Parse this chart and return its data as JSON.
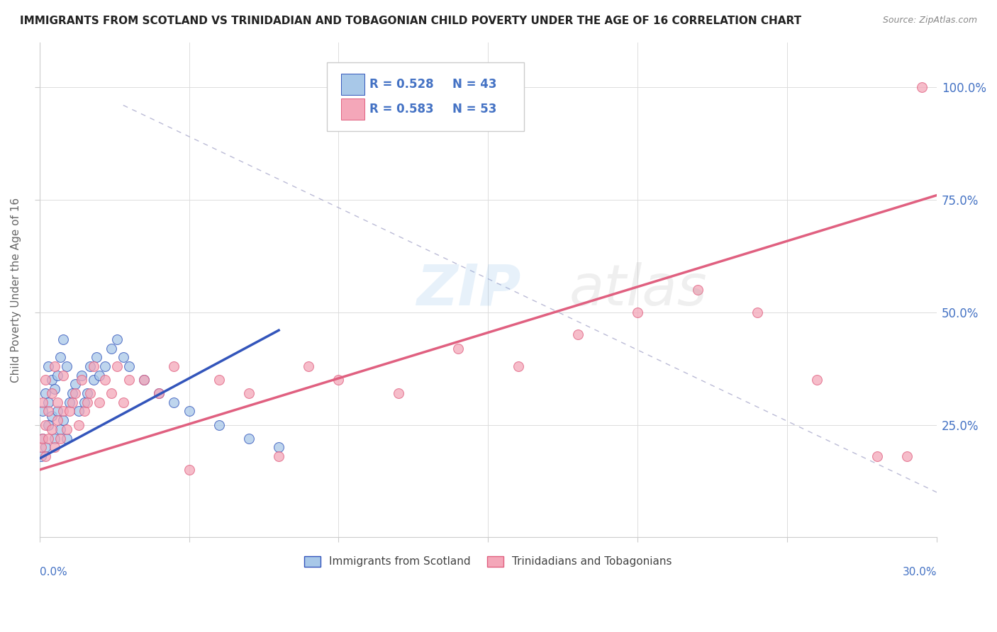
{
  "title": "IMMIGRANTS FROM SCOTLAND VS TRINIDADIAN AND TOBAGONIAN CHILD POVERTY UNDER THE AGE OF 16 CORRELATION CHART",
  "source": "Source: ZipAtlas.com",
  "ylabel": "Child Poverty Under the Age of 16",
  "legend_label1": "Immigrants from Scotland",
  "legend_label2": "Trinidadians and Tobagonians",
  "R1": "0.528",
  "N1": "43",
  "R2": "0.583",
  "N2": "53",
  "color_scotland": "#A8C8E8",
  "color_trinidad": "#F4A7B9",
  "color_scotland_line": "#3355BB",
  "color_trinidad_line": "#E06080",
  "axis_color": "#4472C4",
  "xlim": [
    0.0,
    0.3
  ],
  "ylim": [
    0.0,
    1.1
  ],
  "background_color": "#FFFFFF",
  "grid_color": "#DDDDDD",
  "scotland_x": [
    0.0005,
    0.001,
    0.001,
    0.002,
    0.002,
    0.003,
    0.003,
    0.003,
    0.004,
    0.004,
    0.005,
    0.005,
    0.006,
    0.006,
    0.007,
    0.007,
    0.008,
    0.008,
    0.009,
    0.009,
    0.01,
    0.011,
    0.012,
    0.013,
    0.014,
    0.015,
    0.016,
    0.017,
    0.018,
    0.019,
    0.02,
    0.022,
    0.024,
    0.026,
    0.028,
    0.03,
    0.035,
    0.04,
    0.045,
    0.05,
    0.06,
    0.07,
    0.08
  ],
  "scotland_y": [
    0.18,
    0.22,
    0.28,
    0.2,
    0.32,
    0.25,
    0.3,
    0.38,
    0.27,
    0.35,
    0.22,
    0.33,
    0.28,
    0.36,
    0.24,
    0.4,
    0.26,
    0.44,
    0.22,
    0.38,
    0.3,
    0.32,
    0.34,
    0.28,
    0.36,
    0.3,
    0.32,
    0.38,
    0.35,
    0.4,
    0.36,
    0.38,
    0.42,
    0.44,
    0.4,
    0.38,
    0.35,
    0.32,
    0.3,
    0.28,
    0.25,
    0.22,
    0.2
  ],
  "trinidad_x": [
    0.0005,
    0.001,
    0.001,
    0.002,
    0.002,
    0.002,
    0.003,
    0.003,
    0.004,
    0.004,
    0.005,
    0.005,
    0.006,
    0.006,
    0.007,
    0.008,
    0.008,
    0.009,
    0.01,
    0.011,
    0.012,
    0.013,
    0.014,
    0.015,
    0.016,
    0.017,
    0.018,
    0.02,
    0.022,
    0.024,
    0.026,
    0.028,
    0.03,
    0.035,
    0.04,
    0.045,
    0.05,
    0.06,
    0.07,
    0.08,
    0.09,
    0.1,
    0.12,
    0.14,
    0.16,
    0.18,
    0.2,
    0.22,
    0.24,
    0.26,
    0.28,
    0.29,
    0.295
  ],
  "trinidad_y": [
    0.2,
    0.22,
    0.3,
    0.18,
    0.25,
    0.35,
    0.22,
    0.28,
    0.24,
    0.32,
    0.2,
    0.38,
    0.26,
    0.3,
    0.22,
    0.28,
    0.36,
    0.24,
    0.28,
    0.3,
    0.32,
    0.25,
    0.35,
    0.28,
    0.3,
    0.32,
    0.38,
    0.3,
    0.35,
    0.32,
    0.38,
    0.3,
    0.35,
    0.35,
    0.32,
    0.38,
    0.15,
    0.35,
    0.32,
    0.18,
    0.38,
    0.35,
    0.32,
    0.42,
    0.38,
    0.45,
    0.5,
    0.55,
    0.5,
    0.35,
    0.18,
    0.18,
    1.0
  ]
}
